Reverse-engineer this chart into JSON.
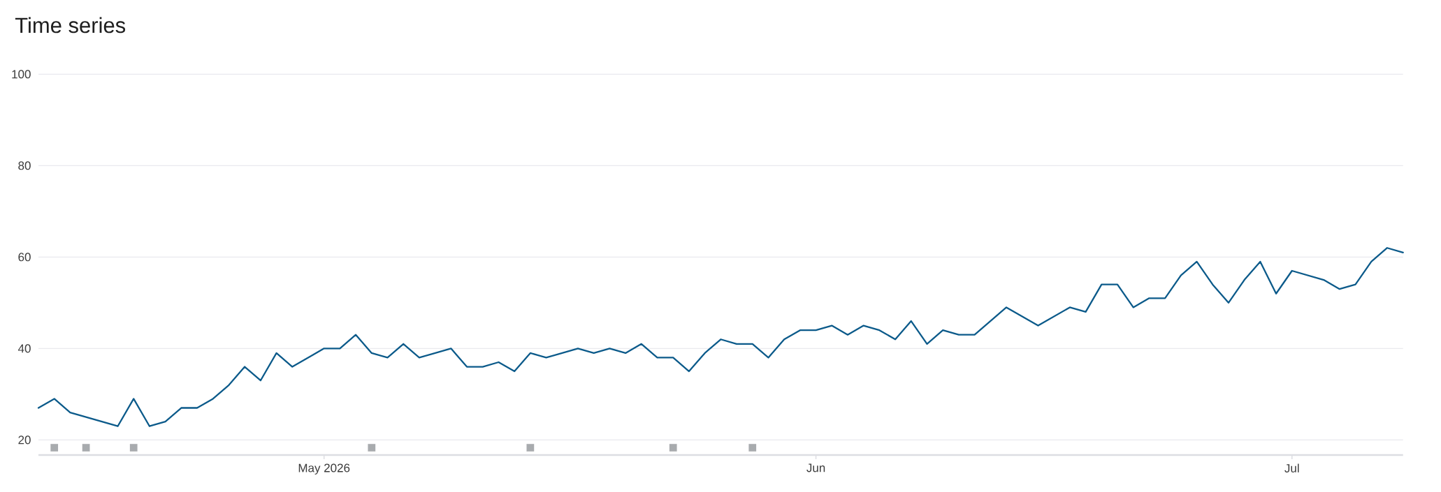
{
  "chart_data": {
    "type": "line",
    "title": "Time series",
    "x": [
      "2026-04-13",
      "2026-04-14",
      "2026-04-15",
      "2026-04-18",
      "2026-04-19",
      "2026-04-20",
      "2026-04-21",
      "2026-04-22",
      "2026-04-23",
      "2026-04-24",
      "2026-04-25",
      "2026-04-26",
      "2026-04-27",
      "2026-04-28",
      "2026-04-29",
      "2026-05-01",
      "2026-05-02",
      "2026-05-03",
      "2026-05-04",
      "2026-05-05",
      "2026-05-06",
      "2026-05-07",
      "2026-05-09",
      "2026-05-10",
      "2026-05-11",
      "2026-05-12",
      "2026-05-13",
      "2026-05-14",
      "2026-05-15",
      "2026-05-17",
      "2026-05-18",
      "2026-05-19",
      "2026-05-20",
      "2026-05-21",
      "2026-05-22",
      "2026-05-23",
      "2026-05-24",
      "2026-05-25",
      "2026-05-26",
      "2026-05-27",
      "2026-05-28",
      "2026-05-29",
      "2026-05-30",
      "2026-05-31",
      "2026-06-01",
      "2026-06-02",
      "2026-06-03",
      "2026-06-04",
      "2026-06-05",
      "2026-06-06",
      "2026-06-07",
      "2026-06-08",
      "2026-06-09",
      "2026-06-10",
      "2026-06-11",
      "2026-06-13",
      "2026-06-15",
      "2026-06-17",
      "2026-06-18",
      "2026-06-19",
      "2026-06-20",
      "2026-06-21",
      "2026-06-22",
      "2026-06-23",
      "2026-06-24",
      "2026-06-25",
      "2026-06-26",
      "2026-06-27",
      "2026-06-28",
      "2026-06-29",
      "2026-06-30",
      "2026-07-01",
      "2026-07-03",
      "2026-07-04",
      "2026-07-05",
      "2026-07-06",
      "2026-07-07",
      "2026-07-08"
    ],
    "series": [
      {
        "color": "#0b5a8a",
        "values": [
          27,
          29,
          26,
          23,
          29,
          23,
          24,
          27,
          27,
          29,
          32,
          36,
          33,
          39,
          36,
          40,
          40,
          43,
          39,
          38,
          41,
          38,
          40,
          36,
          36,
          37,
          35,
          39,
          38,
          40,
          39,
          40,
          39,
          41,
          38,
          38,
          35,
          39,
          42,
          41,
          41,
          38,
          42,
          44,
          44,
          45,
          43,
          45,
          44,
          42,
          46,
          41,
          44,
          43,
          43,
          49,
          45,
          49,
          48,
          54,
          54,
          49,
          51,
          51,
          56,
          59,
          54,
          50,
          55,
          59,
          52,
          57,
          55,
          53,
          54,
          59,
          62,
          61
        ]
      },
      {
        "type": "scatter",
        "color": "#a8abae",
        "marker": "square",
        "x": [
          "2026-04-14",
          "2026-04-16",
          "2026-04-19",
          "2026-05-04",
          "2026-05-14",
          "2026-05-23",
          "2026-05-28"
        ],
        "values": [
          18.3,
          18.3,
          18.3,
          18.3,
          18.3,
          18.3,
          18.3
        ]
      }
    ],
    "xlim": [
      "2026-04-13",
      "2026-07-08"
    ],
    "xticks": [
      {
        "value": "2026-05-01",
        "label": "May 2026"
      },
      {
        "value": "2026-06-01",
        "label": "Jun"
      },
      {
        "value": "2026-07-01",
        "label": "Jul"
      }
    ],
    "ylim": [
      16.7,
      100
    ],
    "yticks": [
      20,
      40,
      60,
      80,
      100
    ],
    "grid": "y",
    "line_style": "solid"
  }
}
